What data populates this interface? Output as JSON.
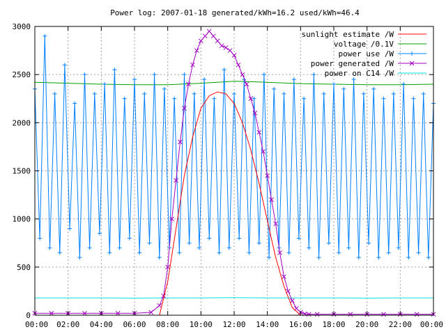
{
  "chart_data": {
    "type": "line",
    "title": "Power log: 2007-01-18 generated/kWh=16.2 used/kWh=46.4",
    "xlabel": "",
    "ylabel": "",
    "xlim": [
      0,
      24
    ],
    "ylim": [
      0,
      3000
    ],
    "grid": true,
    "legend_position": "top-right",
    "x_ticks": [
      {
        "value": 0,
        "label": "00:00"
      },
      {
        "value": 2,
        "label": "02:00"
      },
      {
        "value": 4,
        "label": "04:00"
      },
      {
        "value": 6,
        "label": "06:00"
      },
      {
        "value": 8,
        "label": "08:00"
      },
      {
        "value": 10,
        "label": "10:00"
      },
      {
        "value": 12,
        "label": "12:00"
      },
      {
        "value": 14,
        "label": "14:00"
      },
      {
        "value": 16,
        "label": "16:00"
      },
      {
        "value": 18,
        "label": "18:00"
      },
      {
        "value": 20,
        "label": "20:00"
      },
      {
        "value": 22,
        "label": "22:00"
      },
      {
        "value": 24,
        "label": "00:00"
      }
    ],
    "y_ticks": [
      {
        "value": 0,
        "label": "0"
      },
      {
        "value": 500,
        "label": "500"
      },
      {
        "value": 1000,
        "label": "1000"
      },
      {
        "value": 1500,
        "label": "1500"
      },
      {
        "value": 2000,
        "label": "2000"
      },
      {
        "value": 2500,
        "label": "2500"
      },
      {
        "value": 3000,
        "label": "3000"
      }
    ],
    "series": [
      {
        "name": "sunlight estimate /W",
        "color": "#ff0000",
        "style": "line",
        "x": [
          0,
          7.5,
          8.0,
          8.5,
          9.0,
          9.5,
          10.0,
          10.5,
          11.0,
          11.5,
          12.0,
          12.5,
          13.0,
          13.5,
          14.0,
          14.5,
          15.0,
          15.5,
          16.0,
          24
        ],
        "y": [
          0,
          0,
          350,
          900,
          1450,
          1850,
          2150,
          2280,
          2320,
          2300,
          2200,
          2000,
          1720,
          1370,
          980,
          600,
          300,
          80,
          0,
          0
        ]
      },
      {
        "name": "voltage /0.1V",
        "color": "#00a000",
        "style": "line",
        "x": [
          0,
          2,
          4,
          6,
          8,
          10,
          12,
          14,
          16,
          18,
          20,
          22,
          24
        ],
        "y": [
          2420,
          2410,
          2400,
          2395,
          2395,
          2410,
          2430,
          2420,
          2405,
          2400,
          2395,
          2395,
          2400
        ]
      },
      {
        "name": "power use /W",
        "color": "#0080ff",
        "style": "linespoints-plus",
        "x": [
          0,
          0.3,
          0.6,
          0.9,
          1.2,
          1.5,
          1.8,
          2.1,
          2.4,
          2.7,
          3.0,
          3.3,
          3.6,
          3.9,
          4.2,
          4.5,
          4.8,
          5.1,
          5.4,
          5.7,
          6.0,
          6.3,
          6.6,
          6.9,
          7.2,
          7.5,
          7.8,
          8.1,
          8.4,
          8.7,
          9.0,
          9.3,
          9.6,
          9.9,
          10.2,
          10.5,
          10.8,
          11.1,
          11.4,
          11.7,
          12.0,
          12.3,
          12.6,
          12.9,
          13.2,
          13.5,
          13.8,
          14.1,
          14.4,
          14.7,
          15.0,
          15.3,
          15.6,
          15.9,
          16.2,
          16.5,
          16.8,
          17.1,
          17.4,
          17.7,
          18.0,
          18.3,
          18.6,
          18.9,
          19.2,
          19.5,
          19.8,
          20.1,
          20.4,
          20.7,
          21.0,
          21.3,
          21.6,
          21.9,
          22.2,
          22.5,
          22.8,
          23.1,
          23.4,
          23.7,
          24.0
        ],
        "y": [
          2350,
          800,
          2900,
          700,
          2300,
          650,
          2600,
          900,
          2200,
          600,
          2500,
          700,
          2300,
          850,
          2400,
          650,
          2550,
          700,
          2250,
          800,
          2450,
          650,
          2300,
          750,
          2500,
          600,
          2350,
          700,
          2250,
          650,
          2500,
          750,
          2300,
          700,
          2450,
          800,
          2250,
          650,
          2550,
          700,
          2300,
          800,
          2450,
          650,
          2250,
          750,
          2500,
          600,
          2350,
          700,
          2300,
          650,
          2450,
          800,
          2250,
          700,
          2500,
          600,
          2300,
          750,
          2400,
          650,
          2350,
          700,
          2450,
          600,
          2300,
          750,
          2350,
          600,
          2250,
          650,
          2300,
          700,
          2400,
          600,
          2250,
          650,
          2300,
          600,
          2200
        ]
      },
      {
        "name": "power generated /W",
        "color": "#a000c0",
        "style": "linespoints-cross",
        "x": [
          0,
          1,
          2,
          3,
          4,
          5,
          6,
          7,
          7.5,
          7.75,
          8.0,
          8.25,
          8.5,
          8.75,
          9.0,
          9.25,
          9.5,
          9.75,
          10.0,
          10.25,
          10.5,
          10.75,
          11.0,
          11.25,
          11.5,
          11.75,
          12.0,
          12.25,
          12.5,
          12.75,
          13.0,
          13.25,
          13.5,
          13.75,
          14.0,
          14.25,
          14.5,
          14.75,
          15.0,
          15.25,
          15.5,
          15.75,
          16.0,
          16.25,
          16.5,
          17.0,
          18,
          19,
          20,
          21,
          22,
          23,
          24
        ],
        "y": [
          20,
          20,
          20,
          20,
          20,
          20,
          20,
          30,
          100,
          200,
          500,
          1000,
          1400,
          1800,
          2150,
          2400,
          2600,
          2750,
          2850,
          2900,
          2950,
          2900,
          2850,
          2800,
          2780,
          2750,
          2700,
          2600,
          2500,
          2400,
          2250,
          2100,
          1900,
          1700,
          1450,
          1200,
          950,
          650,
          400,
          250,
          150,
          70,
          30,
          15,
          10,
          10,
          10,
          10,
          10,
          10,
          10,
          10,
          10
        ]
      },
      {
        "name": "power on C14 /W",
        "color": "#00e0e0",
        "style": "line",
        "x": [
          0,
          2,
          4,
          6,
          8,
          10,
          12,
          14,
          16,
          18,
          20,
          22,
          24
        ],
        "y": [
          180,
          180,
          180,
          178,
          180,
          180,
          182,
          180,
          180,
          180,
          178,
          180,
          180
        ]
      }
    ]
  }
}
